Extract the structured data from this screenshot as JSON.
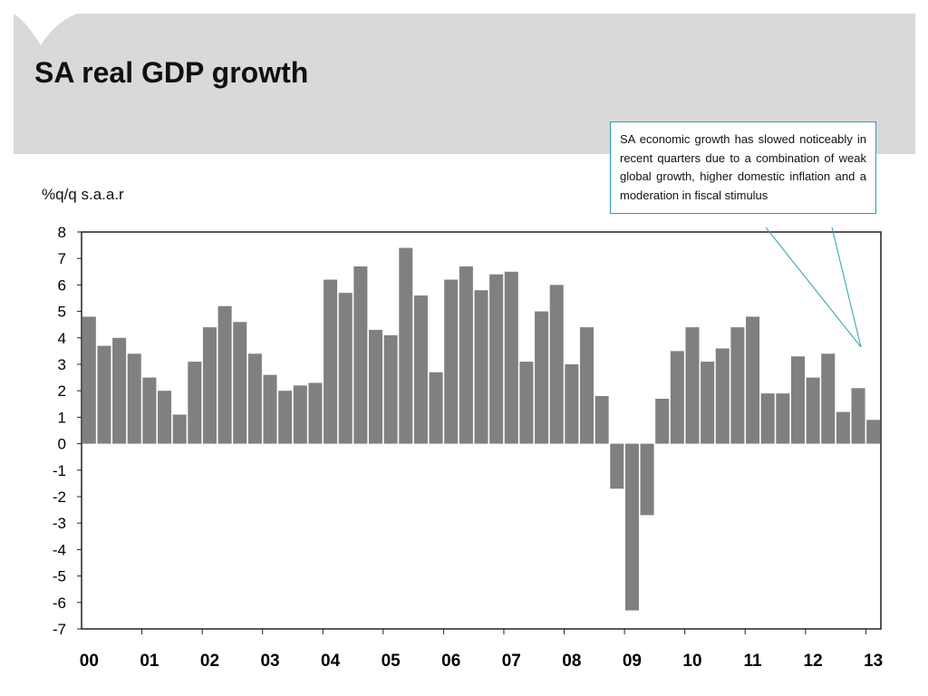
{
  "slide": {
    "title": "SA real GDP growth",
    "callout": "SA economic growth has slowed noticeably in recent quarters due to a combination of weak global growth, higher domestic inflation and a moderation in fiscal stimulus"
  },
  "chart_data": {
    "type": "bar",
    "title": "",
    "ylabel": "%q/q s.a.a.r",
    "xlabel": "",
    "ylim": [
      -7,
      8
    ],
    "yticks": [
      8,
      7,
      6,
      5,
      4,
      3,
      2,
      1,
      0,
      -1,
      -2,
      -3,
      -4,
      -5,
      -6,
      -7
    ],
    "xtick_labels": [
      "00",
      "01",
      "02",
      "03",
      "04",
      "05",
      "06",
      "07",
      "08",
      "09",
      "10",
      "11",
      "12",
      "13"
    ],
    "bar_color": "#808080",
    "annotation_color": "#2aa0b0",
    "grid": false,
    "values": [
      4.8,
      3.7,
      4.0,
      3.4,
      2.5,
      2.0,
      1.1,
      3.1,
      4.4,
      5.2,
      4.6,
      3.4,
      2.6,
      2.0,
      2.2,
      2.3,
      6.2,
      5.7,
      6.7,
      4.3,
      4.1,
      7.4,
      5.6,
      2.7,
      6.2,
      6.7,
      5.8,
      6.4,
      6.5,
      3.1,
      5.0,
      6.0,
      3.0,
      4.4,
      1.8,
      -1.7,
      -6.3,
      -2.7,
      1.7,
      3.5,
      4.4,
      3.1,
      3.6,
      4.4,
      4.8,
      1.9,
      1.9,
      3.3,
      2.5,
      3.4,
      1.2,
      2.1,
      0.9
    ]
  }
}
